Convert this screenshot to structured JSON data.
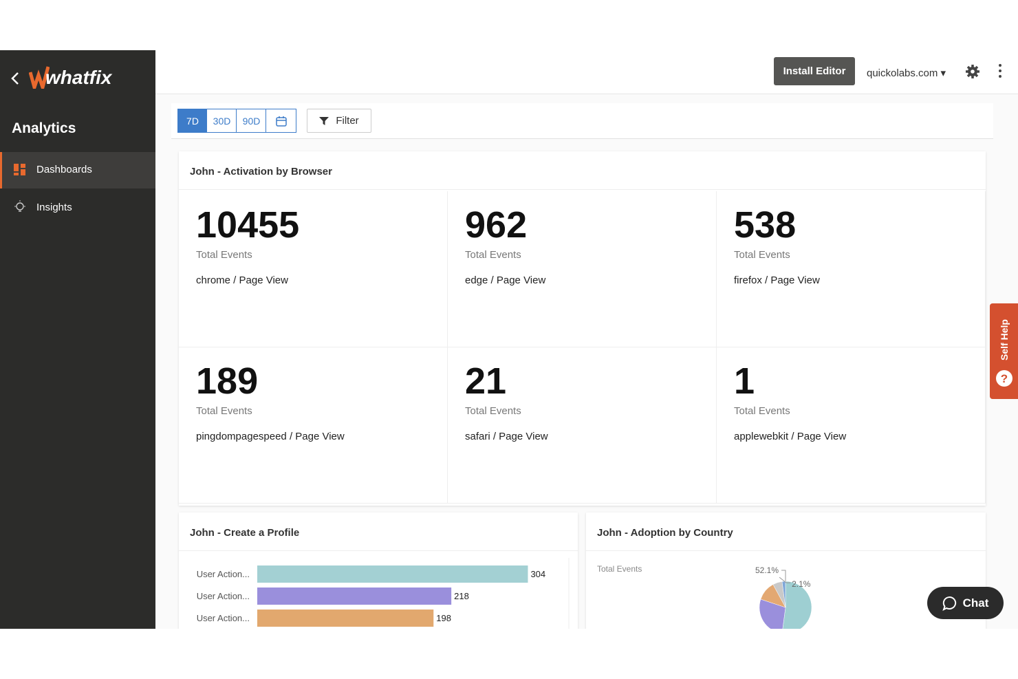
{
  "sidebar": {
    "title": "Analytics",
    "items": [
      "Dashboards",
      "Insights"
    ],
    "logo": "whatfix"
  },
  "topbar": {
    "install_button": "Install Editor",
    "domain": "quickolabs.com"
  },
  "toolbar": {
    "ranges": [
      "7D",
      "30D",
      "90D"
    ],
    "filter": "Filter"
  },
  "browser_card": {
    "title": "John - Activation by Browser",
    "tiles": [
      {
        "value": 10455,
        "caption": "Total Events",
        "label": "chrome / Page View"
      },
      {
        "value": 962,
        "caption": "Total Events",
        "label": "edge / Page View"
      },
      {
        "value": 538,
        "caption": "Total Events",
        "label": "firefox / Page View"
      },
      {
        "value": 189,
        "caption": "Total Events",
        "label": "pingdompagespeed / Page View"
      },
      {
        "value": 21,
        "caption": "Total Events",
        "label": "safari / Page View"
      },
      {
        "value": 1,
        "caption": "Total Events",
        "label": "applewebkit / Page View"
      }
    ]
  },
  "profile_card": {
    "title": "John - Create a Profile",
    "chart_data": {
      "type": "bar",
      "orientation": "horizontal",
      "categories": [
        "User Action...",
        "User Action...",
        "User Action..."
      ],
      "values": [
        304,
        218,
        198
      ],
      "colors": [
        "#a3d0d3",
        "#9a8fdc",
        "#e2a86e"
      ],
      "xlim": [
        0,
        350
      ]
    }
  },
  "country_card": {
    "title": "John - Adoption by Country",
    "chart_data": {
      "type": "pie",
      "subtitle": "Total Events",
      "values": [
        52.1,
        28,
        12,
        5.8,
        2.1
      ],
      "value_labels": [
        "52.1%",
        null,
        null,
        null,
        "2.1%"
      ],
      "colors": [
        "#9ecfd2",
        "#9a8fdc",
        "#e3a872",
        "#c9c9c9",
        "#7fa7d8"
      ]
    }
  },
  "self_help": "Self Help",
  "chat": "Chat"
}
